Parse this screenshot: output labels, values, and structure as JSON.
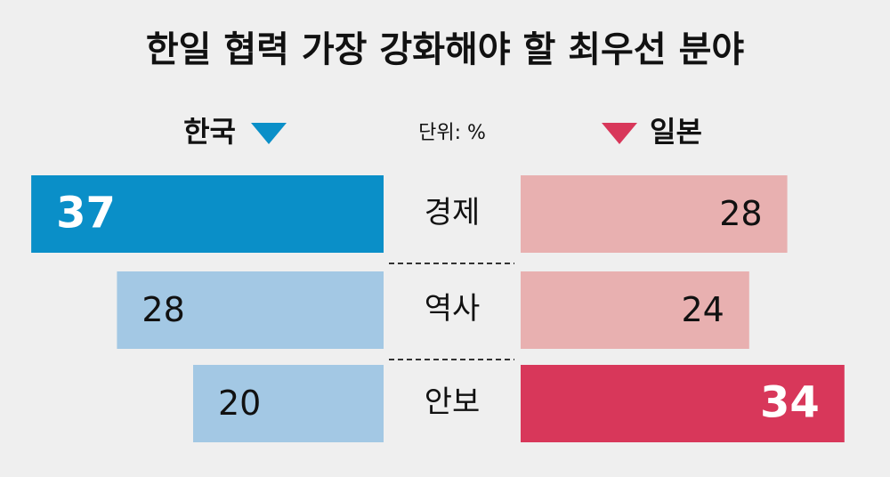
{
  "chart_data": {
    "type": "butterfly",
    "title": "한일 협력 가장 강화해야 할 최우선 분야",
    "unit": "단위: %",
    "categories": [
      "경제",
      "역사",
      "안보"
    ],
    "series": [
      {
        "name": "한국",
        "color": "#0a8fc8",
        "colors": [
          "#0a8fc8",
          "#a3c8e4",
          "#a3c8e4"
        ],
        "values": [
          37,
          28,
          20
        ]
      },
      {
        "name": "일본",
        "color": "#d8375a",
        "colors": [
          "#e8b0b0",
          "#e8b0b0",
          "#d8375a"
        ],
        "values": [
          28,
          24,
          34
        ]
      }
    ]
  }
}
